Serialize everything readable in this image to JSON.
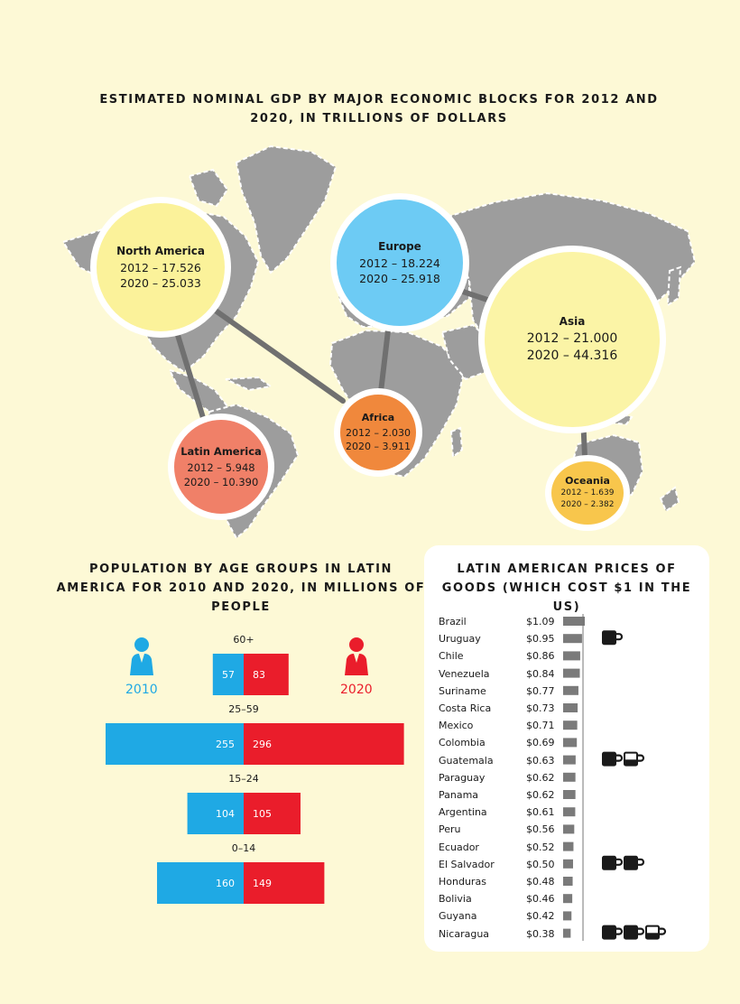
{
  "gdp": {
    "title": "ESTIMATED NOMINAL GDP BY MAJOR ECONOMIC BLOCKS FOR 2012 AND 2020, IN TRILLIONS OF DOLLARS",
    "blocks": [
      {
        "name": "North America",
        "v2012_label": "2012 – 17.526",
        "v2020_label": "2020 – 25.033",
        "color": "#fbf29a"
      },
      {
        "name": "Europe",
        "v2012_label": "2012 – 18.224",
        "v2020_label": "2020 – 25.918",
        "color": "#6dcbf4"
      },
      {
        "name": "Asia",
        "v2012_label": "2012 – 21.000",
        "v2020_label": "2020 – 44.316",
        "color": "#fbf4a6"
      },
      {
        "name": "Africa",
        "v2012_label": "2012 – 2.030",
        "v2020_label": "2020 – 3.911",
        "color": "#f0883c"
      },
      {
        "name": "Latin America",
        "v2012_label": "2012 – 5.948",
        "v2020_label": "2020 – 10.390",
        "color": "#f08068"
      },
      {
        "name": "Oceania",
        "v2012_label": "2012 – 1.639",
        "v2020_label": "2020 – 2.382",
        "color": "#f8c64c"
      }
    ]
  },
  "population": {
    "title": "POPULATION BY AGE GROUPS IN LATIN AMERICA FOR 2010 AND 2020, IN MILLIONS OF PEOPLE",
    "year_a": "2010",
    "year_b": "2020",
    "colors": {
      "a": "#1fa9e4",
      "b": "#ea1d2b"
    }
  },
  "prices": {
    "title": "LATIN AMERICAN PRICES OF GOODS (WHICH COST $1 IN THE US)",
    "rows": [
      {
        "country": "Brazil",
        "price": "$1.09"
      },
      {
        "country": "Uruguay",
        "price": "$0.95"
      },
      {
        "country": "Chile",
        "price": "$0.86"
      },
      {
        "country": "Venezuela",
        "price": "$0.84"
      },
      {
        "country": "Suriname",
        "price": "$0.77"
      },
      {
        "country": "Costa Rica",
        "price": "$0.73"
      },
      {
        "country": "Mexico",
        "price": "$0.71"
      },
      {
        "country": "Colombia",
        "price": "$0.69"
      },
      {
        "country": "Guatemala",
        "price": "$0.63"
      },
      {
        "country": "Paraguay",
        "price": "$0.62"
      },
      {
        "country": "Panama",
        "price": "$0.62"
      },
      {
        "country": "Argentina",
        "price": "$0.61"
      },
      {
        "country": "Peru",
        "price": "$0.56"
      },
      {
        "country": "Ecuador",
        "price": "$0.52"
      },
      {
        "country": "El Salvador",
        "price": "$0.50"
      },
      {
        "country": "Honduras",
        "price": "$0.48"
      },
      {
        "country": "Bolivia",
        "price": "$0.46"
      },
      {
        "country": "Guyana",
        "price": "$0.42"
      },
      {
        "country": "Nicaragua",
        "price": "$0.38"
      }
    ],
    "mug_rows": [
      {
        "country": "Uruguay",
        "mugs": 1.0
      },
      {
        "country": "Guatemala",
        "mugs": 1.5
      },
      {
        "country": "El Salvador",
        "mugs": 2.0
      },
      {
        "country": "Nicaragua",
        "mugs": 2.5
      }
    ]
  },
  "chart_data": [
    {
      "type": "bubble",
      "title": "ESTIMATED NOMINAL GDP BY MAJOR ECONOMIC BLOCKS FOR 2012 AND 2020, IN TRILLIONS OF DOLLARS",
      "categories": [
        "North America",
        "Europe",
        "Asia",
        "Africa",
        "Latin America",
        "Oceania"
      ],
      "series": [
        {
          "name": "2012",
          "values": [
            17.526,
            18.224,
            21.0,
            2.03,
            5.948,
            1.639
          ]
        },
        {
          "name": "2020",
          "values": [
            25.033,
            25.918,
            44.316,
            3.911,
            10.39,
            2.382
          ]
        }
      ]
    },
    {
      "type": "bar",
      "title": "POPULATION BY AGE GROUPS IN LATIN AMERICA FOR 2010 AND 2020, IN MILLIONS OF PEOPLE",
      "categories": [
        "60+",
        "25–59",
        "15–24",
        "0–14"
      ],
      "series": [
        {
          "name": "2010",
          "values": [
            57,
            255,
            104,
            160
          ]
        },
        {
          "name": "2020",
          "values": [
            83,
            296,
            105,
            149
          ]
        }
      ]
    },
    {
      "type": "bar",
      "title": "LATIN AMERICAN PRICES OF GOODS (WHICH COST $1 IN THE US)",
      "categories": [
        "Brazil",
        "Uruguay",
        "Chile",
        "Venezuela",
        "Suriname",
        "Costa Rica",
        "Mexico",
        "Colombia",
        "Guatemala",
        "Paraguay",
        "Panama",
        "Argentina",
        "Peru",
        "Ecuador",
        "El Salvador",
        "Honduras",
        "Bolivia",
        "Guyana",
        "Nicaragua"
      ],
      "values": [
        1.09,
        0.95,
        0.86,
        0.84,
        0.77,
        0.73,
        0.71,
        0.69,
        0.63,
        0.62,
        0.62,
        0.61,
        0.56,
        0.52,
        0.5,
        0.48,
        0.46,
        0.42,
        0.38
      ]
    }
  ]
}
